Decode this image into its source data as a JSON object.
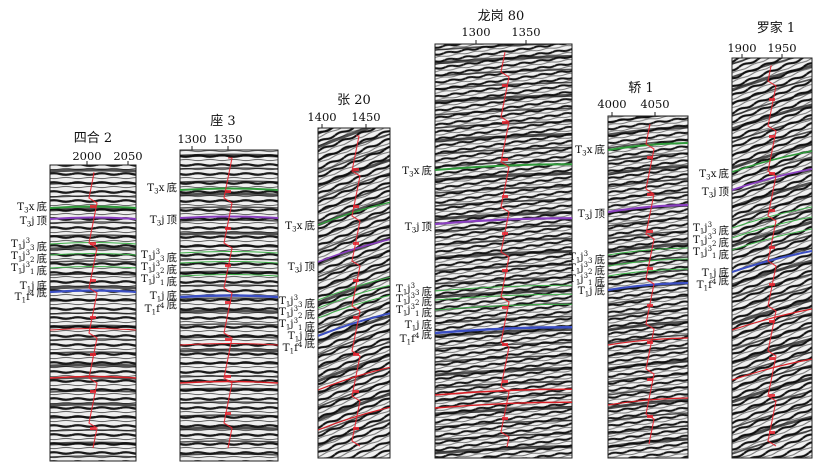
{
  "colors": {
    "Tx": "#2f9a3a",
    "Tj_top": "#8a3fc0",
    "Tj_layers": "#3fb24a",
    "Tj_base": "#3b4fc4",
    "deep": "#d81f26",
    "curve": "#e8232f"
  },
  "wells": [
    {
      "name": "四合 2",
      "ticks": [
        "2000",
        "2050"
      ],
      "labels": [
        {
          "pre": "T",
          "sub": "3",
          "mid": "x",
          "sup": "",
          "post": "底"
        },
        {
          "pre": "T",
          "sub": "3",
          "mid": "j",
          "sup": "",
          "post": "顶"
        },
        {
          "pre": "T",
          "sub": "1",
          "mid": "j",
          "sup": "3",
          "sup_sub": "3",
          "post": "底"
        },
        {
          "pre": "T",
          "sub": "1",
          "mid": "j",
          "sup": "3",
          "sup_sub": "2",
          "post": "底"
        },
        {
          "pre": "T",
          "sub": "1",
          "mid": "j",
          "sup": "3",
          "sup_sub": "1",
          "post": "底"
        },
        {
          "pre": "T",
          "sub": "1",
          "mid": "j",
          "sup": "",
          "post": "底"
        },
        {
          "pre": "T",
          "sub": "1",
          "mid": "f",
          "sup": "4",
          "post": "底"
        }
      ]
    },
    {
      "name": "座 3",
      "ticks": [
        "1300",
        "1350"
      ],
      "labels": [
        {
          "pre": "T",
          "sub": "3",
          "mid": "x",
          "sup": "",
          "post": "底"
        },
        {
          "pre": "T",
          "sub": "3",
          "mid": "j",
          "sup": "",
          "post": "顶"
        },
        {
          "pre": "T",
          "sub": "1",
          "mid": "j",
          "sup": "3",
          "sup_sub": "3",
          "post": "底"
        },
        {
          "pre": "T",
          "sub": "1",
          "mid": "j",
          "sup": "3",
          "sup_sub": "2",
          "post": "底"
        },
        {
          "pre": "T",
          "sub": "1",
          "mid": "j",
          "sup": "3",
          "sup_sub": "1",
          "post": "底"
        },
        {
          "pre": "T",
          "sub": "1",
          "mid": "j",
          "sup": "",
          "post": "底"
        },
        {
          "pre": "T",
          "sub": "1",
          "mid": "f",
          "sup": "4",
          "post": "底"
        }
      ]
    },
    {
      "name": "张 20",
      "ticks": [
        "1400",
        "1450"
      ],
      "labels": [
        {
          "pre": "T",
          "sub": "3",
          "mid": "x",
          "sup": "",
          "post": "底"
        },
        {
          "pre": "T",
          "sub": "3",
          "mid": "j",
          "sup": "",
          "post": "顶"
        },
        {
          "pre": "T",
          "sub": "1",
          "mid": "j",
          "sup": "3",
          "sup_sub": "3",
          "post": "底"
        },
        {
          "pre": "T",
          "sub": "1",
          "mid": "j",
          "sup": "3",
          "sup_sub": "2",
          "post": "底"
        },
        {
          "pre": "T",
          "sub": "1",
          "mid": "j",
          "sup": "3",
          "sup_sub": "1",
          "post": "底"
        },
        {
          "pre": "T",
          "sub": "1",
          "mid": "j",
          "sup": "",
          "post": "底"
        },
        {
          "pre": "T",
          "sub": "1",
          "mid": "f",
          "sup": "4",
          "post": "底"
        }
      ]
    },
    {
      "name": "龙岗 80",
      "ticks": [
        "1300",
        "1350"
      ],
      "labels": [
        {
          "pre": "T",
          "sub": "3",
          "mid": "x",
          "sup": "",
          "post": "底"
        },
        {
          "pre": "T",
          "sub": "3",
          "mid": "j",
          "sup": "",
          "post": "顶"
        },
        {
          "pre": "T",
          "sub": "1",
          "mid": "j",
          "sup": "3",
          "sup_sub": "3",
          "post": "底"
        },
        {
          "pre": "T",
          "sub": "1",
          "mid": "j",
          "sup": "3",
          "sup_sub": "2",
          "post": "底"
        },
        {
          "pre": "T",
          "sub": "1",
          "mid": "j",
          "sup": "3",
          "sup_sub": "1",
          "post": "底"
        },
        {
          "pre": "T",
          "sub": "1",
          "mid": "j",
          "sup": "",
          "post": "底"
        },
        {
          "pre": "T",
          "sub": "1",
          "mid": "f",
          "sup": "4",
          "post": "底"
        }
      ]
    },
    {
      "name": "轿 1",
      "ticks": [
        "4000",
        "4050"
      ],
      "labels": [
        {
          "pre": "T",
          "sub": "3",
          "mid": "x",
          "sup": "",
          "post": "底"
        },
        {
          "pre": "T",
          "sub": "3",
          "mid": "j",
          "sup": "",
          "post": "顶"
        },
        {
          "pre": "T",
          "sub": "1",
          "mid": "j",
          "sup": "3",
          "sup_sub": "3",
          "post": "底"
        },
        {
          "pre": "T",
          "sub": "1",
          "mid": "j",
          "sup": "3",
          "sup_sub": "2",
          "post": "底"
        },
        {
          "pre": "T",
          "sub": "1",
          "mid": "j",
          "sup": "3",
          "sup_sub": "1",
          "post": "底"
        },
        {
          "pre": "T",
          "sub": "1",
          "mid": "j",
          "sup": "",
          "post": "底"
        }
      ]
    },
    {
      "name": "罗家 1",
      "ticks": [
        "1900",
        "1950"
      ],
      "labels": [
        {
          "pre": "T",
          "sub": "3",
          "mid": "x",
          "sup": "",
          "post": "底"
        },
        {
          "pre": "T",
          "sub": "3",
          "mid": "j",
          "sup": "",
          "post": "顶"
        },
        {
          "pre": "T",
          "sub": "1",
          "mid": "j",
          "sup": "3",
          "sup_sub": "3",
          "post": "底"
        },
        {
          "pre": "T",
          "sub": "1",
          "mid": "j",
          "sup": "3",
          "sup_sub": "2",
          "post": "底"
        },
        {
          "pre": "T",
          "sub": "1",
          "mid": "j",
          "sup": "3",
          "sup_sub": "1",
          "post": "底"
        },
        {
          "pre": "T",
          "sub": "1",
          "mid": "j",
          "sup": "",
          "post": "底"
        },
        {
          "pre": "T",
          "sub": "1",
          "mid": "f",
          "sup": "4",
          "post": "底"
        }
      ]
    }
  ]
}
